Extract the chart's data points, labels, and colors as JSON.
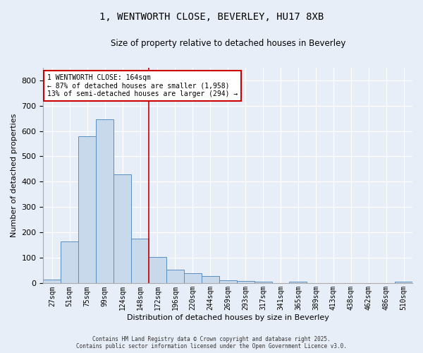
{
  "title": "1, WENTWORTH CLOSE, BEVERLEY, HU17 8XB",
  "subtitle": "Size of property relative to detached houses in Beverley",
  "xlabel": "Distribution of detached houses by size in Beverley",
  "ylabel": "Number of detached properties",
  "bar_labels": [
    "27sqm",
    "51sqm",
    "75sqm",
    "99sqm",
    "124sqm",
    "148sqm",
    "172sqm",
    "196sqm",
    "220sqm",
    "244sqm",
    "269sqm",
    "293sqm",
    "317sqm",
    "341sqm",
    "365sqm",
    "389sqm",
    "413sqm",
    "438sqm",
    "462sqm",
    "486sqm",
    "510sqm"
  ],
  "bar_values": [
    15,
    165,
    580,
    645,
    430,
    175,
    105,
    55,
    40,
    30,
    12,
    10,
    8,
    0,
    7,
    0,
    0,
    0,
    0,
    0,
    6
  ],
  "bar_color": "#c9d9ec",
  "bar_edge_color": "#5a8fc0",
  "background_color": "#e8eef8",
  "grid_color": "#ffffff",
  "vline_x": 5.5,
  "vline_color": "#cc0000",
  "annotation_text": "1 WENTWORTH CLOSE: 164sqm\n← 87% of detached houses are smaller (1,958)\n13% of semi-detached houses are larger (294) →",
  "annotation_box_color": "#ffffff",
  "annotation_box_edge_color": "#cc0000",
  "ylim": [
    0,
    850
  ],
  "yticks": [
    0,
    100,
    200,
    300,
    400,
    500,
    600,
    700,
    800
  ],
  "footer_line1": "Contains HM Land Registry data © Crown copyright and database right 2025.",
  "footer_line2": "Contains public sector information licensed under the Open Government Licence v3.0."
}
